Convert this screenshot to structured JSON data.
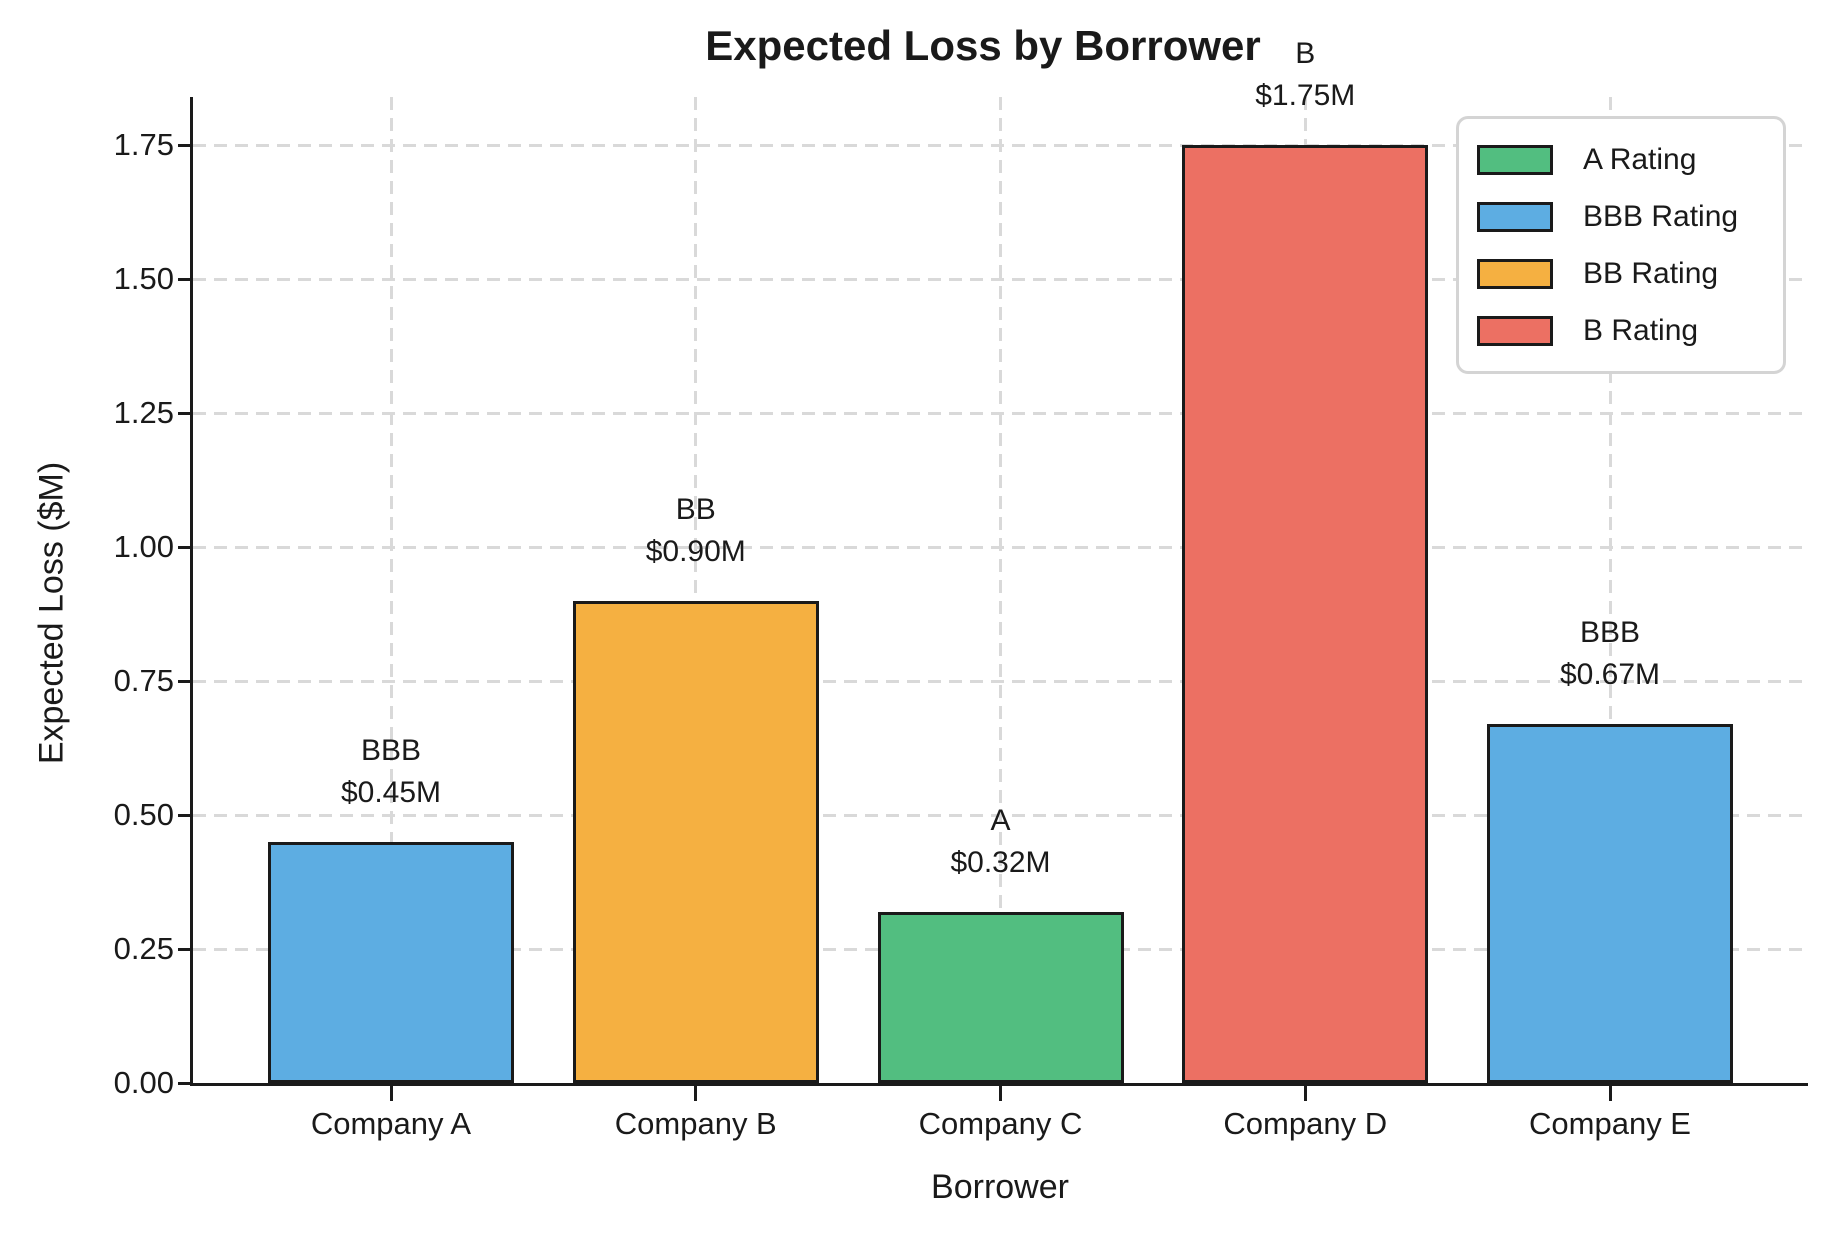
{
  "chart_data": {
    "type": "bar",
    "title": "Expected Loss by Borrower",
    "xlabel": "Borrower",
    "ylabel": "Expected Loss ($M)",
    "categories": [
      "Company A",
      "Company B",
      "Company C",
      "Company D",
      "Company E"
    ],
    "values": [
      0.45,
      0.9,
      0.32,
      1.75,
      0.67
    ],
    "ratings": [
      "BBB",
      "BB",
      "A",
      "B",
      "BBB"
    ],
    "value_labels": [
      "$0.45M",
      "$0.90M",
      "$0.32M",
      "$1.75M",
      "$0.67M"
    ],
    "bar_colors": [
      "#5DADE2",
      "#F5B041",
      "#52BE80",
      "#EC7063",
      "#5DADE2"
    ],
    "bar_edge_color": "#1a1a1a",
    "ylim": [
      0,
      1.84
    ],
    "ytick_values": [
      0.0,
      0.25,
      0.5,
      0.75,
      1.0,
      1.25,
      1.5,
      1.75
    ],
    "ytick_labels": [
      "0.00",
      "0.25",
      "0.50",
      "0.75",
      "1.00",
      "1.25",
      "1.50",
      "1.75"
    ],
    "grid": {
      "axes": "both",
      "style": "dashed",
      "color": "#d9d9d9"
    },
    "legend": {
      "position": "upper-right",
      "entries": [
        {
          "label": "A Rating",
          "color": "#52BE80"
        },
        {
          "label": "BBB Rating",
          "color": "#5DADE2"
        },
        {
          "label": "BB Rating",
          "color": "#F5B041"
        },
        {
          "label": "B Rating",
          "color": "#EC7063"
        }
      ]
    }
  }
}
